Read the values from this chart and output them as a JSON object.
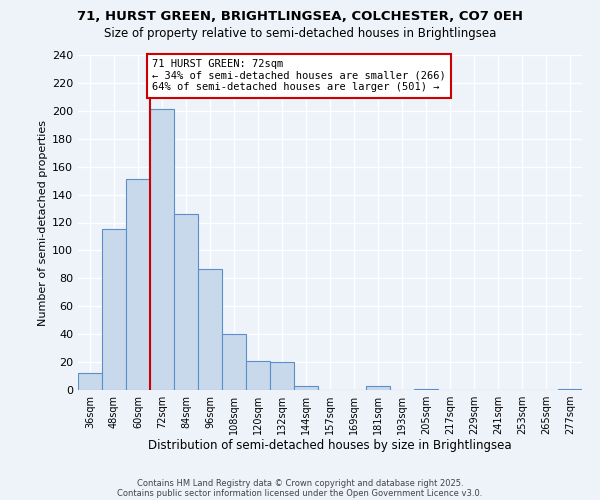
{
  "title_line1": "71, HURST GREEN, BRIGHTLINGSEA, COLCHESTER, CO7 0EH",
  "title_line2": "Size of property relative to semi-detached houses in Brightlingsea",
  "xlabel": "Distribution of semi-detached houses by size in Brightlingsea",
  "ylabel": "Number of semi-detached properties",
  "bar_labels": [
    "36sqm",
    "48sqm",
    "60sqm",
    "72sqm",
    "84sqm",
    "96sqm",
    "108sqm",
    "120sqm",
    "132sqm",
    "144sqm",
    "157sqm",
    "169sqm",
    "181sqm",
    "193sqm",
    "205sqm",
    "217sqm",
    "229sqm",
    "241sqm",
    "253sqm",
    "265sqm",
    "277sqm"
  ],
  "bar_values": [
    12,
    115,
    151,
    201,
    126,
    87,
    40,
    21,
    20,
    3,
    0,
    0,
    3,
    0,
    1,
    0,
    0,
    0,
    0,
    0,
    1
  ],
  "bar_color": "#c9d9ec",
  "bar_edge_color": "#5b8fc9",
  "vline_color": "#cc0000",
  "annotation_text": "71 HURST GREEN: 72sqm\n← 34% of semi-detached houses are smaller (266)\n64% of semi-detached houses are larger (501) →",
  "annotation_box_color": "#ffffff",
  "annotation_box_edge_color": "#cc0000",
  "ylim": [
    0,
    240
  ],
  "yticks": [
    0,
    20,
    40,
    60,
    80,
    100,
    120,
    140,
    160,
    180,
    200,
    220,
    240
  ],
  "footer_line1": "Contains HM Land Registry data © Crown copyright and database right 2025.",
  "footer_line2": "Contains public sector information licensed under the Open Government Licence v3.0.",
  "bg_color": "#eef2f9",
  "grid_color": "#ffffff"
}
